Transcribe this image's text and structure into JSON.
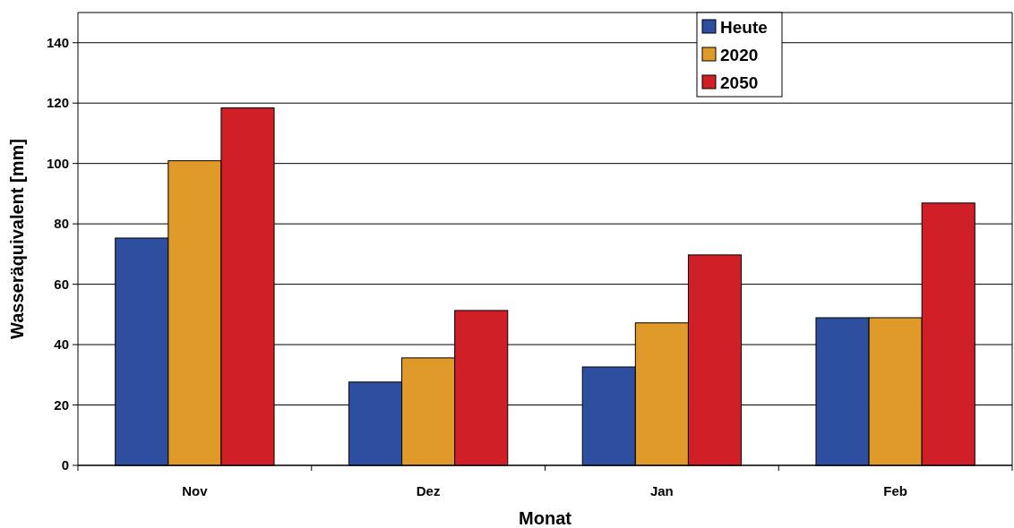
{
  "chart_data": {
    "type": "bar",
    "xlabel": "Monat",
    "ylabel": "Wasseräquivalent [mm]",
    "categories": [
      "Nov",
      "Dez",
      "Jan",
      "Feb"
    ],
    "series": [
      {
        "name": "Heute",
        "color": "#2e4f9f",
        "values": [
          75.3,
          27.6,
          32.6,
          48.9
        ]
      },
      {
        "name": "2020",
        "color": "#e09a2a",
        "values": [
          100.9,
          35.6,
          47.2,
          48.9
        ]
      },
      {
        "name": "2050",
        "color": "#d01f27",
        "values": [
          118.4,
          51.3,
          69.7,
          86.9
        ]
      }
    ],
    "ylim": [
      0,
      150
    ],
    "yticks": [
      0,
      20,
      40,
      60,
      80,
      100,
      120,
      140
    ],
    "grid": "y",
    "legend": "top right"
  }
}
